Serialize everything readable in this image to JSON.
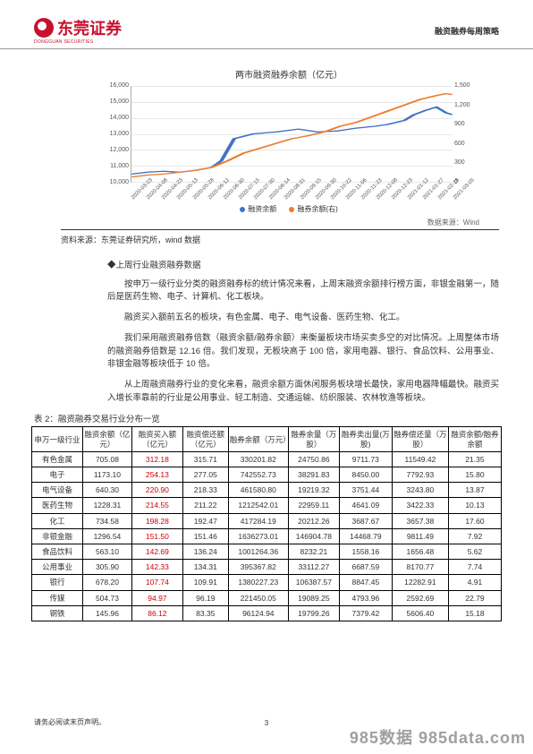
{
  "header": {
    "logo_text": "东莞证券",
    "logo_sub": "DONGGUAN SECURITIES",
    "right_text": "融资融券每周策略"
  },
  "chart": {
    "title": "两市融资融券余额（亿元）",
    "type": "line",
    "series": [
      {
        "name": "融资余额",
        "color": "#4472c4",
        "axis": "left"
      },
      {
        "name": "融券余额(右)",
        "color": "#ed7d31",
        "axis": "right"
      }
    ],
    "y_left": {
      "min": 10000,
      "max": 16000,
      "step": 1000
    },
    "y_right": {
      "min": 0,
      "max": 1500,
      "step": 300
    },
    "x_labels": [
      "2020-03-23",
      "2020-04-08",
      "2020-04-23",
      "2020-05-13",
      "2020-05-28",
      "2020-06-12",
      "2020-06-30",
      "2020-07-15",
      "2020-07-30",
      "2020-08-14",
      "2020-08-31",
      "2020-09-15",
      "2020-09-30",
      "2020-10-22",
      "2020-11-06",
      "2020-11-23",
      "2020-12-08",
      "2020-12-23",
      "2021-01-12",
      "2021-01-27",
      "2021-02-18",
      "2021-03-05"
    ],
    "line1_points": "0,92 5,90 10,89 15,90 20,88 25,85 28,78 32,55 38,50 45,48 52,45 58,48 64,47 70,44 76,42 80,40 85,36 88,30 92,25 95,22 98,28 100,30",
    "line2_points": "0,95 5,93 10,92 15,90 20,88 25,85 30,78 35,70 40,65 45,60 50,55 55,52 60,48 65,42 70,38 75,32 80,26 85,20 90,14 95,10 98,8 100,9",
    "grid_color": "#e8e8e8",
    "source_label": "数据来源：Wind"
  },
  "source_line": "资料来源：东莞证券研究所，wind 数据",
  "section_heading": "◆上周行业融资融券数据",
  "paragraphs": [
    "按申万一级行业分类的融资融券标的统计情况来看，上周末融资余额排行榜方面，非银金融第一，随后是医药生物、电子、计算机、化工板块。",
    "融资买入额前五名的板块，有色金属、电子、电气设备、医药生物、化工。",
    "我们采用融资融券倍数（融资余额/融券余额）来衡量板块市场买卖多空的对比情况。上周整体市场的融资融券倍数是 12.16 倍。我们发现，无板块高于 100 倍，家用电器、银行、食品饮料、公用事业、非银金融等板块低于 10 倍。",
    "从上周融资融券行业的变化来看，融资余额方面休闲服务板块增长最快，家用电器降幅最快。融资买入增长率靠前的行业是公用事业、轻工制造、交通运输、纺织服装、农林牧渔等板块。"
  ],
  "table": {
    "caption": "表 2：融资融券交易行业分布一览",
    "columns": [
      "申万一级行业",
      "融资余额（亿元）",
      "融资买入额（亿元）",
      "融资偿还额（亿元）",
      "融券余额（万元）",
      "融券余量（万股）",
      "融券卖出量(万股)",
      "融券偿还量（万股）",
      "融资余额/融券余额"
    ],
    "col_widths": [
      "56",
      "54",
      "56",
      "50",
      "66",
      "56",
      "58",
      "62",
      "58"
    ],
    "rows": [
      [
        "有色金属",
        "705.08",
        "312.18",
        "315.71",
        "330201.82",
        "24750.86",
        "9711.73",
        "11549.42",
        "21.35"
      ],
      [
        "电子",
        "1173.10",
        "254.13",
        "277.05",
        "742552.73",
        "38291.83",
        "8450.00",
        "7792.93",
        "15.80"
      ],
      [
        "电气设备",
        "640.30",
        "220.90",
        "218.33",
        "461580.80",
        "19219.32",
        "3751.44",
        "3243.80",
        "13.87"
      ],
      [
        "医药生物",
        "1228.31",
        "214.55",
        "211.22",
        "1212542.01",
        "22959.11",
        "4641.09",
        "3422.33",
        "10.13"
      ],
      [
        "化工",
        "734.58",
        "198.28",
        "192.47",
        "417284.19",
        "20212.26",
        "3687.67",
        "3657.38",
        "17.60"
      ],
      [
        "非银金融",
        "1296.54",
        "151.50",
        "151.46",
        "1636273.01",
        "146904.78",
        "14468.79",
        "9811.49",
        "7.92"
      ],
      [
        "食品饮料",
        "563.10",
        "142.69",
        "136.24",
        "1001264.36",
        "8232.21",
        "1558.16",
        "1656.48",
        "5.62"
      ],
      [
        "公用事业",
        "305.90",
        "142.33",
        "134.31",
        "395367.82",
        "33112.27",
        "6687.59",
        "8170.77",
        "7.74"
      ],
      [
        "银行",
        "678.20",
        "107.74",
        "109.91",
        "1380227.23",
        "106387.57",
        "8847.45",
        "12282.91",
        "4.91"
      ],
      [
        "传媒",
        "504.73",
        "94.97",
        "96.19",
        "221450.05",
        "19089.25",
        "4793.96",
        "2592.69",
        "22.79"
      ],
      [
        "钢铁",
        "145.96",
        "86.12",
        "83.35",
        "96124.94",
        "19799.26",
        "7379.42",
        "5606.40",
        "15.18"
      ]
    ],
    "red_col_index": 2
  },
  "footer": "请务必阅读末页声明。",
  "page_num": "3",
  "watermark": "985数据 985data.com"
}
